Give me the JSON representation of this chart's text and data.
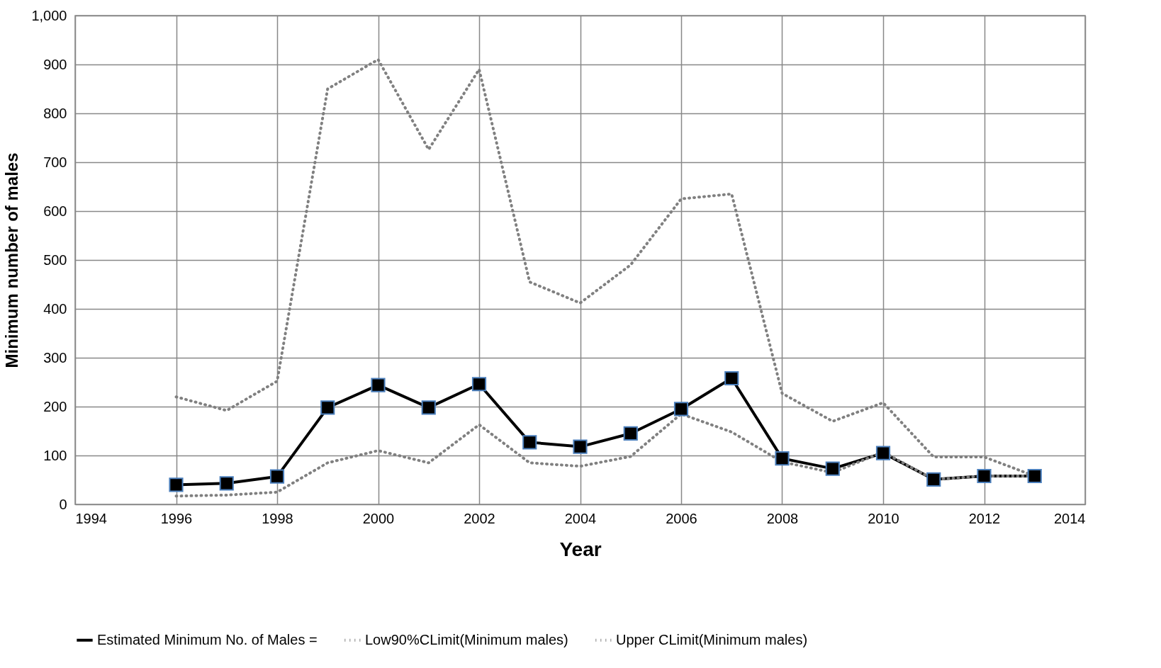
{
  "chart_data": {
    "type": "line",
    "xlabel": "Year",
    "ylabel": "Minimum number of males",
    "x": [
      1996,
      1997,
      1998,
      1999,
      2000,
      2001,
      2002,
      2003,
      2004,
      2005,
      2006,
      2007,
      2008,
      2009,
      2010,
      2011,
      2012,
      2013
    ],
    "series": [
      {
        "name": "Estimated Minimum No. of Males =",
        "color": "#000000",
        "marker": "square",
        "line_style": "solid",
        "values": [
          40,
          43,
          57,
          198,
          244,
          198,
          246,
          127,
          118,
          145,
          195,
          258,
          94,
          73,
          105,
          51,
          58,
          58
        ]
      },
      {
        "name": "Low90%CLimit(Minimum males)",
        "color": "#808080",
        "marker": "none",
        "line_style": "dotted",
        "values": [
          17,
          19,
          25,
          85,
          110,
          85,
          163,
          85,
          78,
          98,
          185,
          148,
          87,
          65,
          107,
          51,
          58,
          58
        ]
      },
      {
        "name": "Upper CLimit(Minimum males)",
        "color": "#808080",
        "marker": "none",
        "line_style": "dotted",
        "values": [
          220,
          192,
          252,
          850,
          910,
          726,
          890,
          455,
          412,
          490,
          625,
          635,
          227,
          170,
          208,
          97,
          97,
          58
        ]
      }
    ],
    "xlim": [
      1994,
      2014
    ],
    "xticks": [
      1994,
      1996,
      1998,
      2000,
      2002,
      2004,
      2006,
      2008,
      2010,
      2012,
      2014
    ],
    "ylim": [
      0,
      1000
    ],
    "yticks": [
      0,
      100,
      200,
      300,
      400,
      500,
      600,
      700,
      800,
      900,
      {
        "value": 1000,
        "label": "1,000"
      }
    ],
    "grid": true,
    "legend": "bottom"
  }
}
